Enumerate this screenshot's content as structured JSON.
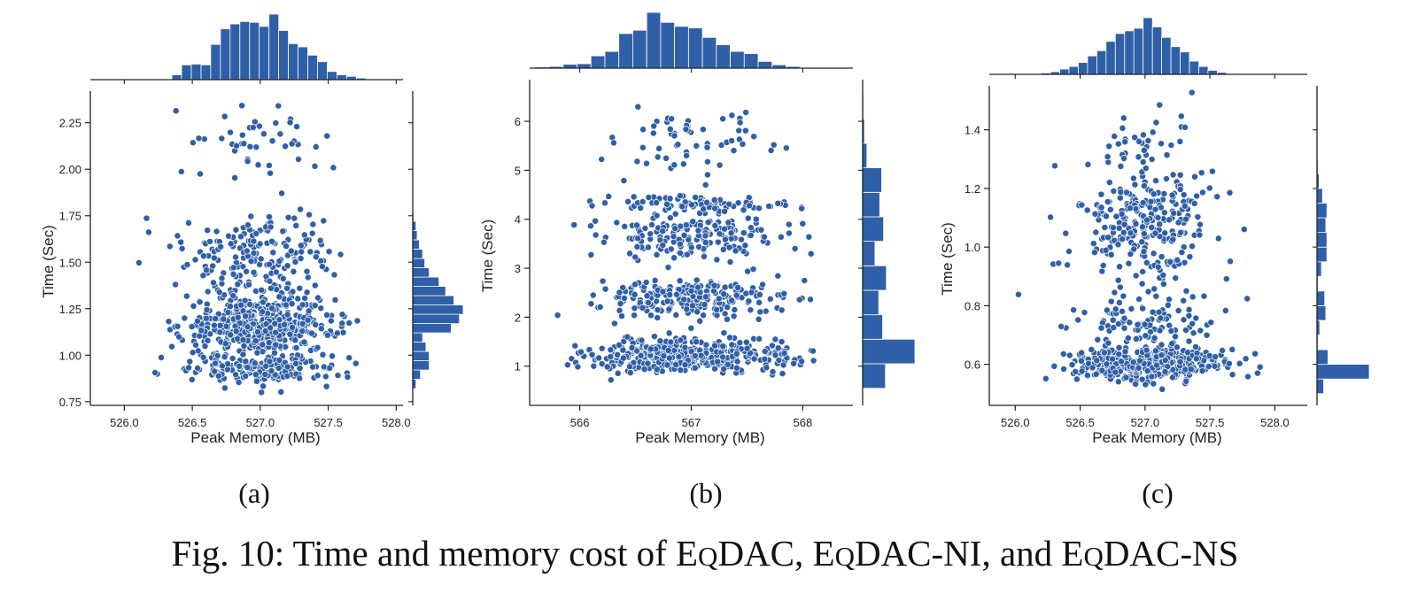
{
  "figure": {
    "caption_prefix": "Fig. 10: Time and memory cost of ",
    "caption_methods": [
      {
        "first": "E",
        "small": "Q",
        "rest": "DAC"
      },
      {
        "first": "E",
        "small": "Q",
        "rest": "DAC-NI"
      },
      {
        "first": "E",
        "small": "Q",
        "rest": "DAC-NS"
      }
    ],
    "caption_sep1": ", ",
    "caption_sep2": ", and ",
    "subpanels": [
      "(a)",
      "(b)",
      "(c)"
    ]
  },
  "style": {
    "point_color": "#2f5fa6",
    "bar_color": "#2f5fa6",
    "point_edge": "#ffffff"
  },
  "chart_data": [
    {
      "type": "scatter",
      "id": "a",
      "xlabel": "Peak Memory (MB)",
      "ylabel": "Time (Sec)",
      "xlim": [
        525.75,
        528.05
      ],
      "ylim": [
        0.73,
        2.42
      ],
      "xticks": [
        526.0,
        526.5,
        527.0,
        527.5,
        528.0
      ],
      "xtick_labels": [
        "526.0",
        "526.5",
        "527.0",
        "527.5",
        "528.0"
      ],
      "yticks": [
        0.75,
        1.0,
        1.25,
        1.5,
        1.75,
        2.0,
        2.25
      ],
      "ytick_labels": [
        "0.75",
        "1.00",
        "1.25",
        "1.50",
        "1.75",
        "2.00",
        "2.25"
      ],
      "marginal": "histograms on top and right",
      "clusters": [
        {
          "x_mean": 527.0,
          "x_sd": 0.28,
          "y_mean": 1.16,
          "y_sd": 0.085,
          "n": 480
        },
        {
          "x_mean": 527.0,
          "x_sd": 0.3,
          "y_mean": 0.92,
          "y_sd": 0.04,
          "n": 150
        },
        {
          "x_mean": 527.0,
          "x_sd": 0.28,
          "y_mean": 1.55,
          "y_sd": 0.12,
          "n": 190
        },
        {
          "x_mean": 527.0,
          "x_sd": 0.25,
          "y_mean": 2.15,
          "y_sd": 0.1,
          "n": 45
        }
      ],
      "top_hist": {
        "bin_start": 526.35,
        "bin_width": 0.0714,
        "counts": [
          6,
          18,
          19,
          18,
          43,
          62,
          68,
          71,
          70,
          65,
          80,
          60,
          44,
          40,
          30,
          22,
          10,
          6,
          4,
          2,
          1
        ]
      },
      "right_hist": {
        "bin_start": 0.82,
        "bin_width": 0.05,
        "counts": [
          6,
          14,
          30,
          30,
          24,
          18,
          70,
          85,
          92,
          75,
          60,
          48,
          30,
          22,
          18,
          12,
          8,
          6,
          2
        ]
      }
    },
    {
      "type": "scatter",
      "id": "b",
      "xlabel": "Peak Memory (MB)",
      "ylabel": "Time (Sec)",
      "xlim": [
        565.55,
        568.45
      ],
      "ylim": [
        0.2,
        6.85
      ],
      "xticks": [
        566,
        567,
        568
      ],
      "xtick_labels": [
        "566",
        "567",
        "568"
      ],
      "yticks": [
        1,
        2,
        3,
        4,
        5,
        6
      ],
      "ytick_labels": [
        "1",
        "2",
        "3",
        "4",
        "5",
        "6"
      ],
      "marginal": "histograms on top and right",
      "clusters": [
        {
          "x_mean": 567.0,
          "x_sd": 0.45,
          "y_mean": 1.2,
          "y_sd": 0.18,
          "n": 420
        },
        {
          "x_mean": 567.0,
          "x_sd": 0.42,
          "y_mean": 2.4,
          "y_sd": 0.18,
          "n": 230
        },
        {
          "x_mean": 567.0,
          "x_sd": 0.42,
          "y_mean": 3.65,
          "y_sd": 0.22,
          "n": 180
        },
        {
          "x_mean": 567.0,
          "x_sd": 0.4,
          "y_mean": 4.3,
          "y_sd": 0.08,
          "n": 90
        },
        {
          "x_mean": 567.0,
          "x_sd": 0.4,
          "y_mean": 5.5,
          "y_sd": 0.4,
          "n": 60
        }
      ],
      "top_hist": {
        "bin_start": 565.6,
        "bin_width": 0.125,
        "counts": [
          2,
          3,
          7,
          8,
          22,
          30,
          62,
          68,
          100,
          82,
          75,
          72,
          55,
          42,
          30,
          26,
          12,
          6,
          3,
          1,
          1
        ]
      },
      "right_hist": {
        "bin_start": 0.55,
        "bin_width": 0.5,
        "counts": [
          48,
          110,
          42,
          34,
          50,
          26,
          44,
          36,
          40,
          9,
          4,
          2
        ]
      }
    },
    {
      "type": "scatter",
      "id": "c",
      "xlabel": "Peak Memory (MB)",
      "ylabel": "Time (Sec)",
      "xlim": [
        525.8,
        528.25
      ],
      "ylim": [
        0.46,
        1.55
      ],
      "xticks": [
        526.0,
        526.5,
        527.0,
        527.5,
        528.0
      ],
      "xtick_labels": [
        "526.0",
        "526.5",
        "527.0",
        "527.5",
        "528.0"
      ],
      "yticks": [
        0.6,
        0.8,
        1.0,
        1.2,
        1.4
      ],
      "ytick_labels": [
        "0.6",
        "0.8",
        "1.0",
        "1.2",
        "1.4"
      ],
      "marginal": "histograms on top and right",
      "clusters": [
        {
          "x_mean": 527.0,
          "x_sd": 0.3,
          "y_mean": 0.6,
          "y_sd": 0.03,
          "n": 420
        },
        {
          "x_mean": 527.0,
          "x_sd": 0.3,
          "y_mean": 0.75,
          "y_sd": 0.05,
          "n": 110
        },
        {
          "x_mean": 527.0,
          "x_sd": 0.28,
          "y_mean": 1.08,
          "y_sd": 0.1,
          "n": 270
        },
        {
          "x_mean": 527.0,
          "x_sd": 0.25,
          "y_mean": 1.38,
          "y_sd": 0.06,
          "n": 35
        }
      ],
      "top_hist": {
        "bin_start": 526.2,
        "bin_width": 0.0714,
        "counts": [
          2,
          4,
          8,
          12,
          18,
          28,
          36,
          50,
          62,
          66,
          70,
          86,
          72,
          56,
          42,
          34,
          20,
          12,
          6,
          3,
          1
        ]
      },
      "right_hist": {
        "bin_start": 0.5,
        "bin_width": 0.05,
        "counts": [
          12,
          95,
          20,
          2,
          5,
          16,
          14,
          2,
          8,
          18,
          18,
          16,
          18,
          10,
          4,
          2
        ]
      }
    }
  ]
}
